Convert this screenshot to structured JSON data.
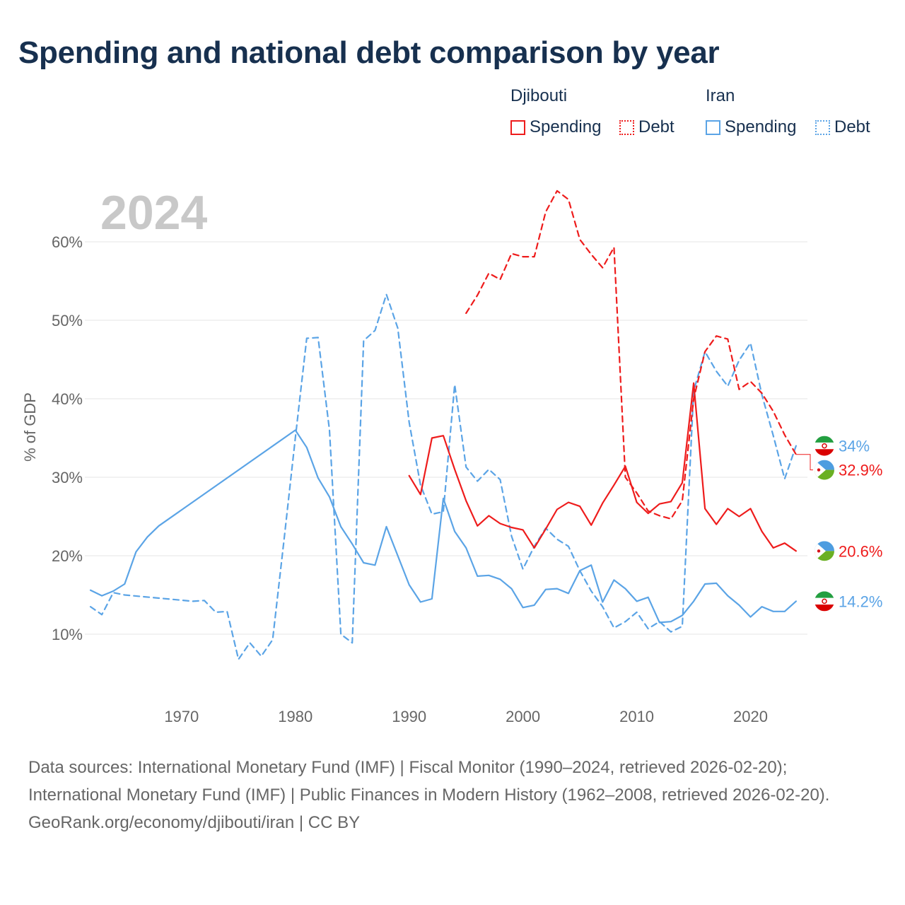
{
  "title": "Spending and national debt comparison by year",
  "legend": {
    "groups": [
      {
        "name": "Djibouti",
        "color": "#ee1c1c",
        "items": [
          {
            "label": "Spending",
            "style": "solid"
          },
          {
            "label": "Debt",
            "style": "dotted"
          }
        ]
      },
      {
        "name": "Iran",
        "color": "#5ba4e6",
        "items": [
          {
            "label": "Spending",
            "style": "solid"
          },
          {
            "label": "Debt",
            "style": "dotted"
          }
        ]
      }
    ]
  },
  "chart_data": {
    "type": "line",
    "year_label": "2024",
    "ylabel": "% of GDP",
    "xlim": [
      1961.5,
      2025
    ],
    "ylim": [
      3.5,
      65
    ],
    "x_ticks": [
      1970,
      1980,
      1990,
      2000,
      2010,
      2020
    ],
    "x_tick_labels": [
      "1970",
      "1980",
      "1990",
      "2000",
      "2010",
      "2020"
    ],
    "y_ticks": [
      10,
      20,
      30,
      40,
      50,
      60
    ],
    "y_tick_labels": [
      "10%",
      "20%",
      "30%",
      "40%",
      "50%",
      "60%"
    ],
    "colors": {
      "djibouti": "#ee1c1c",
      "iran": "#5ba4e6"
    },
    "series": [
      {
        "name": "Iran Spending",
        "country": "iran",
        "style": "solid",
        "end_label": "14.2%",
        "points": [
          [
            1962,
            15.6
          ],
          [
            1963,
            14.9
          ],
          [
            1964,
            15.5
          ],
          [
            1965,
            16.4
          ],
          [
            1966,
            20.5
          ],
          [
            1967,
            22.4
          ],
          [
            1968,
            23.8
          ],
          [
            1980,
            36.0
          ],
          [
            1981,
            33.8
          ],
          [
            1982,
            29.9
          ],
          [
            1983,
            27.5
          ],
          [
            1984,
            23.7
          ],
          [
            1985,
            21.5
          ],
          [
            1986,
            19.1
          ],
          [
            1987,
            18.8
          ],
          [
            1988,
            23.7
          ],
          [
            1989,
            20.0
          ],
          [
            1990,
            16.3
          ],
          [
            1991,
            14.1
          ],
          [
            1992,
            14.5
          ],
          [
            1993,
            27.3
          ],
          [
            1994,
            23.1
          ],
          [
            1995,
            21.0
          ],
          [
            1996,
            17.4
          ],
          [
            1997,
            17.5
          ],
          [
            1998,
            17.0
          ],
          [
            1999,
            15.8
          ],
          [
            2000,
            13.4
          ],
          [
            2001,
            13.7
          ],
          [
            2002,
            15.7
          ],
          [
            2003,
            15.8
          ],
          [
            2004,
            15.2
          ],
          [
            2005,
            18.1
          ],
          [
            2006,
            18.8
          ],
          [
            2007,
            14.1
          ],
          [
            2008,
            16.9
          ],
          [
            2009,
            15.8
          ],
          [
            2010,
            14.2
          ],
          [
            2011,
            14.7
          ],
          [
            2012,
            11.5
          ],
          [
            2013,
            11.6
          ],
          [
            2014,
            12.4
          ],
          [
            2015,
            14.2
          ],
          [
            2016,
            16.4
          ],
          [
            2017,
            16.5
          ],
          [
            2018,
            14.9
          ],
          [
            2019,
            13.7
          ],
          [
            2020,
            12.2
          ],
          [
            2021,
            13.5
          ],
          [
            2022,
            12.9
          ],
          [
            2023,
            12.9
          ],
          [
            2024,
            14.2
          ]
        ]
      },
      {
        "name": "Iran Debt",
        "country": "iran",
        "style": "dashed",
        "end_label": "34%",
        "points": [
          [
            1962,
            13.5
          ],
          [
            1963,
            12.5
          ],
          [
            1964,
            15.3
          ],
          [
            1965,
            15.0
          ],
          [
            1971,
            14.2
          ],
          [
            1972,
            14.3
          ],
          [
            1973,
            12.8
          ],
          [
            1974,
            12.9
          ],
          [
            1975,
            6.8
          ],
          [
            1976,
            8.9
          ],
          [
            1977,
            7.2
          ],
          [
            1978,
            9.3
          ],
          [
            1979,
            22.0
          ],
          [
            1980,
            35.0
          ],
          [
            1981,
            47.7
          ],
          [
            1982,
            47.8
          ],
          [
            1983,
            36.0
          ],
          [
            1984,
            10.0
          ],
          [
            1985,
            8.9
          ],
          [
            1986,
            47.4
          ],
          [
            1987,
            48.7
          ],
          [
            1988,
            53.3
          ],
          [
            1989,
            49.0
          ],
          [
            1990,
            37.0
          ],
          [
            1991,
            29.0
          ],
          [
            1992,
            25.3
          ],
          [
            1993,
            25.6
          ],
          [
            1994,
            41.8
          ],
          [
            1995,
            31.3
          ],
          [
            1996,
            29.5
          ],
          [
            1997,
            31.0
          ],
          [
            1998,
            29.7
          ],
          [
            1999,
            22.5
          ],
          [
            2000,
            18.3
          ],
          [
            2001,
            21.2
          ],
          [
            2002,
            23.5
          ],
          [
            2003,
            22.1
          ],
          [
            2004,
            21.2
          ],
          [
            2005,
            18.1
          ],
          [
            2006,
            15.5
          ],
          [
            2007,
            13.5
          ],
          [
            2008,
            10.8
          ],
          [
            2009,
            11.6
          ],
          [
            2010,
            12.8
          ],
          [
            2011,
            10.7
          ],
          [
            2012,
            11.6
          ],
          [
            2013,
            10.3
          ],
          [
            2014,
            11.0
          ],
          [
            2015,
            41.0
          ],
          [
            2016,
            46.0
          ],
          [
            2017,
            43.5
          ],
          [
            2018,
            41.6
          ],
          [
            2019,
            44.9
          ],
          [
            2020,
            47.1
          ],
          [
            2021,
            40.5
          ],
          [
            2022,
            35.3
          ],
          [
            2023,
            29.8
          ],
          [
            2024,
            34.0
          ]
        ]
      },
      {
        "name": "Djibouti Spending",
        "country": "djibouti",
        "style": "solid",
        "end_label": "20.6%",
        "points": [
          [
            1990,
            30.2
          ],
          [
            1991,
            27.8
          ],
          [
            1992,
            35.0
          ],
          [
            1993,
            35.3
          ],
          [
            1994,
            31.0
          ],
          [
            1995,
            27.0
          ],
          [
            1996,
            23.8
          ],
          [
            1997,
            25.1
          ],
          [
            1998,
            24.1
          ],
          [
            1999,
            23.6
          ],
          [
            2000,
            23.3
          ],
          [
            2001,
            21.0
          ],
          [
            2002,
            23.4
          ],
          [
            2003,
            25.9
          ],
          [
            2004,
            26.8
          ],
          [
            2005,
            26.3
          ],
          [
            2006,
            23.9
          ],
          [
            2007,
            26.7
          ],
          [
            2008,
            29.0
          ],
          [
            2009,
            31.4
          ],
          [
            2010,
            26.8
          ],
          [
            2011,
            25.4
          ],
          [
            2012,
            26.6
          ],
          [
            2013,
            26.9
          ],
          [
            2014,
            29.3
          ],
          [
            2015,
            42.0
          ],
          [
            2016,
            26.0
          ],
          [
            2017,
            24.0
          ],
          [
            2018,
            26.0
          ],
          [
            2019,
            25.0
          ],
          [
            2020,
            26.0
          ],
          [
            2021,
            23.1
          ],
          [
            2022,
            21.0
          ],
          [
            2023,
            21.6
          ],
          [
            2024,
            20.6
          ]
        ]
      },
      {
        "name": "Djibouti Debt",
        "country": "djibouti",
        "style": "dashed",
        "end_label": "32.9%",
        "points": [
          [
            1995,
            50.9
          ],
          [
            1996,
            53.2
          ],
          [
            1997,
            56.0
          ],
          [
            1998,
            55.2
          ],
          [
            1999,
            58.5
          ],
          [
            2000,
            58.1
          ],
          [
            2001,
            58.1
          ],
          [
            2002,
            63.8
          ],
          [
            2003,
            66.5
          ],
          [
            2004,
            65.4
          ],
          [
            2005,
            60.3
          ],
          [
            2006,
            58.4
          ],
          [
            2007,
            56.7
          ],
          [
            2008,
            59.3
          ],
          [
            2009,
            30.0
          ],
          [
            2010,
            28.0
          ],
          [
            2011,
            25.7
          ],
          [
            2012,
            25.1
          ],
          [
            2013,
            24.7
          ],
          [
            2014,
            27.0
          ],
          [
            2015,
            40.0
          ],
          [
            2016,
            46.0
          ],
          [
            2017,
            48.0
          ],
          [
            2018,
            47.6
          ],
          [
            2019,
            41.2
          ],
          [
            2020,
            42.2
          ],
          [
            2021,
            40.7
          ],
          [
            2022,
            38.4
          ],
          [
            2023,
            35.4
          ],
          [
            2024,
            32.9
          ]
        ]
      }
    ]
  },
  "sources": {
    "line1": "Data sources: International Monetary Fund (IMF) | Fiscal Monitor (1990–2024, retrieved 2026-02-20); International Monetary Fund (IMF) | Public Finances in Modern History (1962–2008, retrieved 2026-02-20).",
    "line2": "GeoRank.org/economy/djibouti/iran | CC BY"
  }
}
